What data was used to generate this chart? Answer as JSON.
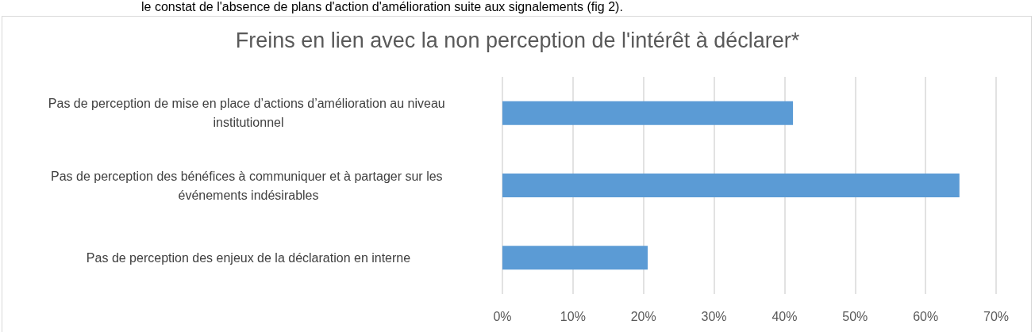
{
  "chart_data": {
    "type": "bar",
    "orientation": "horizontal",
    "title": "Freins en lien avec la non perception de l'intérêt à déclarer*",
    "annotations": [
      "le constat de l'absence de plans d'action d'amélioration suite aux signalements (fig 2)."
    ],
    "categories": [
      "Pas de perception de mise en place d’actions d’amélioration au niveau institutionnel",
      "Pas de perception des bénéfices à communiquer et à partager sur les événements indésirables",
      "Pas de perception des enjeux de la déclaration en interne"
    ],
    "values": [
      41.2,
      64.8,
      20.6
    ],
    "color": "#5b9bd5",
    "xlim": [
      0,
      70
    ],
    "xticks": [
      {
        "value": 0,
        "label": "0%"
      },
      {
        "value": 10,
        "label": "10%"
      },
      {
        "value": 20,
        "label": "20%"
      },
      {
        "value": 30,
        "label": "30%"
      },
      {
        "value": 40,
        "label": "40%"
      },
      {
        "value": 50,
        "label": "50%"
      },
      {
        "value": 60,
        "label": "60%"
      },
      {
        "value": 70,
        "label": "70%"
      }
    ],
    "grid": "x"
  }
}
